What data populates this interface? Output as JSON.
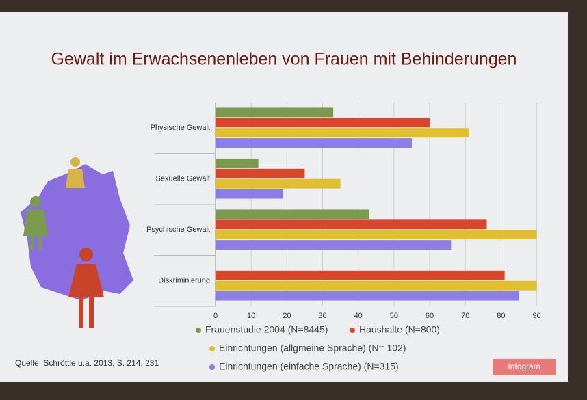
{
  "chart_data": {
    "type": "hbar",
    "title": "Gewalt im Erwachsenenleben von Frauen mit Behinderungen",
    "categories": [
      "Physische Gewalt",
      "Sexuelle Gewalt",
      "Psychische Gewalt",
      "Diskriminierung"
    ],
    "series": [
      {
        "name": "Frauenstudie 2004 (N=8445)",
        "color": "#7a9a4e",
        "values": [
          33,
          12,
          43,
          null
        ]
      },
      {
        "name": "Haushalte (N=800)",
        "color": "#d8472b",
        "values": [
          60,
          25,
          76,
          81
        ]
      },
      {
        "name": "Einrichtungen (allgmeine Sprache) (N= 102)",
        "color": "#e0c030",
        "values": [
          71,
          35,
          90,
          90
        ]
      },
      {
        "name": "Einrichtungen (einfache Sprache) (N=315)",
        "color": "#8f7de6",
        "values": [
          55,
          19,
          66,
          85
        ]
      }
    ],
    "xlim": [
      0,
      92
    ],
    "xticks": [
      0,
      10,
      20,
      30,
      40,
      50,
      60,
      70,
      80,
      90
    ],
    "grid": true,
    "source": "Quelle: Schröttle u.a. 2013, S. 214, 231",
    "logo": "Infogram"
  }
}
